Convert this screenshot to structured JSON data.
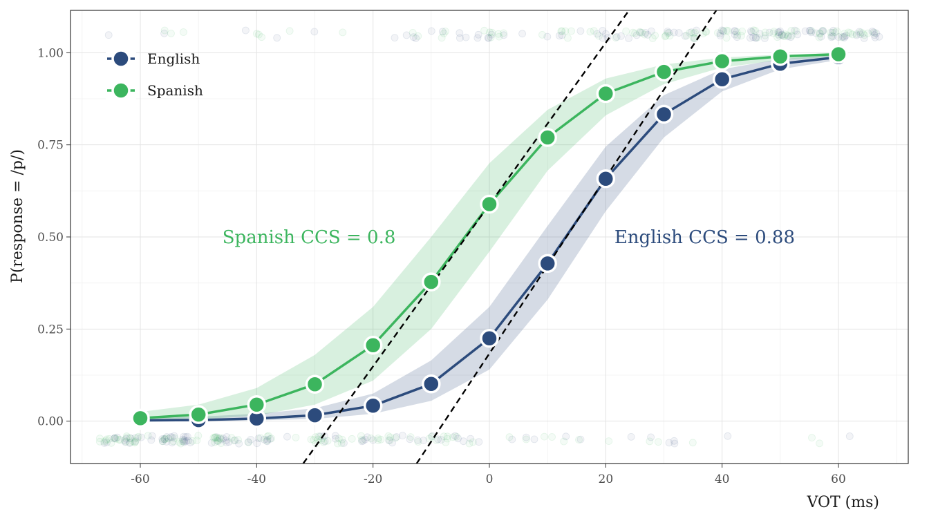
{
  "chart_data": {
    "type": "line",
    "xlabel": "VOT (ms)",
    "ylabel": "P(response = /p/)",
    "xlim": [
      -72,
      72
    ],
    "ylim": [
      -0.115,
      1.115
    ],
    "x_ticks": [
      -60,
      -40,
      -20,
      0,
      20,
      40,
      60
    ],
    "x_tick_labels": [
      "-60",
      "-40",
      "-20",
      "0",
      "20",
      "40",
      "60"
    ],
    "y_ticks": [
      0,
      0.25,
      0.5,
      0.75,
      1.0
    ],
    "y_tick_labels": [
      "0.00",
      "0.25",
      "0.50",
      "0.75",
      "1.00"
    ],
    "grid": true,
    "legend_position": "top-left",
    "x": [
      -60,
      -50,
      -40,
      -30,
      -20,
      -10,
      0,
      10,
      20,
      30,
      40,
      50,
      60
    ],
    "series": [
      {
        "name": "English",
        "color": "#2c4b7c",
        "values": [
          0.002,
          0.003,
          0.007,
          0.016,
          0.042,
          0.101,
          0.225,
          0.428,
          0.658,
          0.833,
          0.928,
          0.97,
          0.988
        ],
        "ci_lower": [
          0.0,
          0.0,
          0.002,
          0.006,
          0.02,
          0.055,
          0.14,
          0.33,
          0.57,
          0.77,
          0.895,
          0.955,
          0.98
        ],
        "ci_upper": [
          0.008,
          0.012,
          0.02,
          0.035,
          0.075,
          0.165,
          0.31,
          0.53,
          0.745,
          0.885,
          0.955,
          0.983,
          0.994
        ]
      },
      {
        "name": "Spanish",
        "color": "#3cb55e",
        "values": [
          0.008,
          0.018,
          0.045,
          0.1,
          0.206,
          0.378,
          0.589,
          0.77,
          0.889,
          0.948,
          0.977,
          0.99,
          0.996
        ],
        "ci_lower": [
          0.0,
          0.005,
          0.015,
          0.045,
          0.11,
          0.25,
          0.46,
          0.68,
          0.83,
          0.915,
          0.96,
          0.98,
          0.99
        ],
        "ci_upper": [
          0.025,
          0.045,
          0.09,
          0.18,
          0.31,
          0.5,
          0.7,
          0.845,
          0.93,
          0.968,
          0.987,
          0.995,
          0.999
        ]
      }
    ],
    "tangent_lines": [
      {
        "x1": -32,
        "y1": -0.115,
        "x2": 24,
        "y2": 1.115
      },
      {
        "x1": -12.5,
        "y1": -0.115,
        "x2": 39,
        "y2": 1.115
      }
    ],
    "annotations": [
      {
        "text": "Spanish CCS = 0.8",
        "x": -31,
        "y": 0.5,
        "color": "#3cb55e"
      },
      {
        "text": "English CCS = 0.88",
        "x": 37,
        "y": 0.5,
        "color": "#2c4b7c"
      }
    ],
    "raw_responses_bands": [
      {
        "y": 1.05,
        "x_range": [
          -66,
          67
        ]
      },
      {
        "y": -0.05,
        "x_range": [
          -67,
          66
        ]
      }
    ]
  }
}
